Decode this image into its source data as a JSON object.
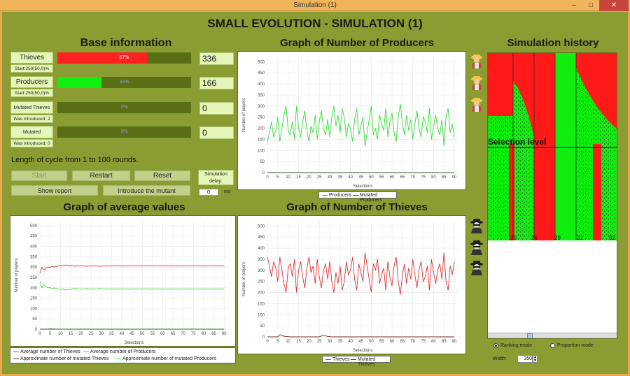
{
  "window": {
    "title": "Simulation (1)",
    "controls": [
      "–",
      "□",
      "✕"
    ]
  },
  "app_title": "SMALL EVOLUTION - SIMULATION (1)",
  "base": {
    "title": "Base information",
    "rows": [
      {
        "label": "Thieves",
        "sub": "Start:250(50,0)%",
        "percent_text": "67%",
        "fraction": 0.67,
        "color": "#ff2020",
        "value": "336"
      },
      {
        "label": "Producers",
        "sub": "Start:250(50,0)%",
        "percent_text": "33%",
        "fraction": 0.33,
        "color": "#10f010",
        "value": "166"
      },
      {
        "label": "Mutated Thieves",
        "sub": "Was introduced: 2",
        "percent_text": "0%",
        "fraction": 0,
        "color": "#ff2020",
        "value": "0"
      },
      {
        "label": "Mutated Producers",
        "sub": "Was introduced: 0",
        "percent_text": "0%",
        "fraction": 0,
        "color": "#10f010",
        "value": "0"
      }
    ],
    "cycle_text": "Length of cycle from 1 to 100 rounds.",
    "buttons": {
      "start": "Start",
      "restart": "Restart",
      "reset": "Reset",
      "show_report": "Show report",
      "introduce": "Introduce the mutant"
    },
    "delay_label": "Simulation delay:",
    "delay_value": "0",
    "delay_unit": "ms"
  },
  "history": {
    "title": "Simulation history",
    "selection_label": "Selection level",
    "labels": [
      "25",
      "26",
      "29",
      "31",
      "32"
    ],
    "mode_ranking": "Ranking mode",
    "mode_proportion": "Proportion mode",
    "width_label": "Width:",
    "width_value": "350"
  },
  "icons": {
    "producers": "farmer-icon",
    "thieves": "thief-icon"
  },
  "chart_data": [
    {
      "id": "producers",
      "type": "line",
      "title": "Graph of Number of Producers",
      "xlabel": "Selections",
      "ylabel": "Number of players",
      "xlim": [
        0,
        92
      ],
      "ylim": [
        0,
        520
      ],
      "xticks": [
        0,
        5,
        10,
        15,
        20,
        25,
        30,
        35,
        40,
        45,
        50,
        55,
        60,
        65,
        70,
        75,
        80,
        85,
        90
      ],
      "yticks": [
        0,
        50,
        100,
        150,
        200,
        250,
        300,
        350,
        400,
        450,
        500
      ],
      "series": [
        {
          "name": "Producers",
          "color": "#33dd33",
          "x_start": 0,
          "values": [
            140,
            180,
            230,
            160,
            190,
            250,
            140,
            200,
            260,
            300,
            190,
            170,
            230,
            150,
            300,
            200,
            160,
            230,
            280,
            190,
            140,
            210,
            180,
            260,
            150,
            230,
            280,
            200,
            170,
            240,
            160,
            250,
            300,
            210,
            260,
            180,
            290,
            250,
            160,
            220,
            200,
            140,
            240,
            290,
            170,
            210,
            250,
            120,
            180,
            240,
            300,
            170,
            200,
            150,
            260,
            220,
            190,
            290,
            160,
            230,
            270,
            180,
            140,
            250,
            310,
            220,
            170,
            260,
            190,
            240,
            150,
            220,
            280,
            200,
            160,
            250,
            230,
            180,
            290,
            150,
            210,
            260,
            200,
            170,
            240,
            120,
            250,
            290,
            180,
            220,
            160
          ]
        },
        {
          "name": "Mutated Producers",
          "color": "#226622",
          "x_start": 0,
          "values": [
            0,
            0,
            0,
            0,
            0,
            0,
            0,
            0,
            0,
            0,
            0,
            0,
            0,
            0,
            0,
            0,
            0,
            0,
            0,
            0,
            0,
            0,
            0,
            0,
            0,
            0,
            0,
            0,
            0,
            0,
            0,
            0,
            0,
            0,
            0,
            0,
            0,
            0,
            0,
            0,
            0,
            0,
            0,
            0,
            0,
            0,
            0,
            0,
            0,
            0,
            0,
            0,
            0,
            0,
            0,
            0,
            0,
            0,
            0,
            0,
            0,
            0,
            0,
            0,
            0,
            0,
            0,
            0,
            0,
            0,
            0,
            0,
            0,
            0,
            0,
            0,
            0,
            0,
            0,
            0,
            0,
            0,
            0,
            0,
            0,
            0,
            0,
            0,
            0,
            0,
            0
          ]
        }
      ]
    },
    {
      "id": "thieves",
      "type": "line",
      "title": "Graph of Number of Thieves",
      "xlabel": "Selections",
      "ylabel": "Number of players",
      "xlim": [
        0,
        92
      ],
      "ylim": [
        0,
        520
      ],
      "xticks": [
        0,
        5,
        10,
        15,
        20,
        25,
        30,
        35,
        40,
        45,
        50,
        55,
        60,
        65,
        70,
        75,
        80,
        85,
        90
      ],
      "yticks": [
        0,
        50,
        100,
        150,
        200,
        250,
        300,
        350,
        400,
        450,
        500
      ],
      "series": [
        {
          "name": "Thieves",
          "color": "#dd3333",
          "x_start": 0,
          "values": [
            360,
            320,
            270,
            340,
            310,
            250,
            360,
            300,
            240,
            200,
            310,
            330,
            270,
            350,
            200,
            300,
            340,
            270,
            220,
            310,
            360,
            290,
            320,
            240,
            350,
            270,
            220,
            300,
            330,
            260,
            340,
            250,
            200,
            290,
            240,
            320,
            210,
            250,
            340,
            280,
            300,
            360,
            260,
            210,
            330,
            290,
            250,
            380,
            320,
            260,
            200,
            330,
            300,
            350,
            240,
            280,
            310,
            210,
            340,
            270,
            230,
            320,
            360,
            250,
            190,
            280,
            330,
            240,
            310,
            260,
            350,
            280,
            220,
            300,
            340,
            250,
            270,
            320,
            210,
            350,
            290,
            240,
            300,
            330,
            260,
            380,
            250,
            210,
            320,
            280,
            340
          ]
        },
        {
          "name": "Mutated Thieves",
          "color": "#7a2a2a",
          "x_start": 0,
          "values": [
            0,
            0,
            0,
            0,
            0,
            0,
            10,
            6,
            3,
            2,
            1,
            0,
            0,
            0,
            0,
            0,
            0,
            0,
            0,
            0,
            0,
            0,
            0,
            0,
            0,
            0,
            4,
            7,
            5,
            2,
            1,
            0,
            0,
            0,
            0,
            0,
            0,
            0,
            0,
            0,
            0,
            0,
            0,
            0,
            0,
            0,
            0,
            0,
            0,
            0,
            0,
            0,
            0,
            0,
            0,
            0,
            0,
            0,
            0,
            0,
            0,
            0,
            0,
            0,
            0,
            0,
            0,
            0,
            0,
            0,
            0,
            0,
            0,
            0,
            0,
            0,
            0,
            0,
            0,
            0,
            0,
            0,
            0,
            0,
            0,
            0,
            0,
            0,
            0,
            0,
            0
          ]
        }
      ]
    },
    {
      "id": "averages",
      "type": "line",
      "title": "Graph of average values",
      "xlabel": "Selections",
      "ylabel": "Number of players",
      "xlim": [
        0,
        92
      ],
      "ylim": [
        0,
        520
      ],
      "xticks": [
        0,
        5,
        10,
        15,
        20,
        25,
        30,
        35,
        40,
        45,
        50,
        55,
        60,
        65,
        70,
        75,
        80,
        85,
        90
      ],
      "yticks": [
        0,
        50,
        100,
        150,
        200,
        250,
        300,
        350,
        400,
        450,
        500
      ],
      "series": [
        {
          "name": "Average number of Thieves",
          "color": "#dd3333",
          "x_start": 0,
          "values": [
            270,
            300,
            285,
            295,
            300,
            298,
            305,
            300,
            303,
            306,
            308,
            305,
            309,
            310,
            307,
            309,
            306,
            304,
            306,
            305,
            307,
            306,
            305,
            304,
            305,
            306,
            305,
            306,
            305,
            304,
            305,
            306,
            306,
            305,
            306,
            305,
            306,
            307,
            306,
            305,
            306,
            306,
            305,
            306,
            307,
            306,
            305,
            306,
            306,
            307,
            306,
            305,
            306,
            306,
            307,
            306,
            306,
            305,
            306,
            307,
            306,
            306,
            307,
            306,
            306,
            305,
            306,
            307,
            306,
            306,
            307,
            306,
            306,
            307,
            306,
            306,
            307,
            306,
            306,
            307,
            306,
            306,
            307,
            306,
            306,
            307,
            306,
            306,
            307,
            306,
            306
          ]
        },
        {
          "name": "Average number of Producers",
          "color": "#33dd33",
          "x_start": 0,
          "values": [
            230,
            200,
            215,
            205,
            200,
            202,
            195,
            200,
            197,
            194,
            192,
            195,
            191,
            190,
            193,
            191,
            194,
            196,
            194,
            195,
            193,
            194,
            195,
            196,
            195,
            194,
            195,
            194,
            195,
            196,
            195,
            194,
            194,
            195,
            194,
            195,
            194,
            193,
            194,
            195,
            194,
            194,
            195,
            194,
            193,
            194,
            195,
            194,
            194,
            193,
            194,
            195,
            194,
            194,
            193,
            194,
            194,
            195,
            194,
            193,
            194,
            194,
            193,
            194,
            194,
            195,
            194,
            193,
            194,
            194,
            193,
            194,
            194,
            193,
            194,
            194,
            193,
            194,
            194,
            193,
            194,
            194,
            193,
            194,
            194,
            193,
            194,
            194,
            193,
            194,
            194
          ]
        },
        {
          "name": "Approximate number of mutated Thieves",
          "color": "#7a2a2a",
          "x_start": 0,
          "values": [
            0,
            0,
            0,
            0,
            0,
            2,
            1,
            1,
            0,
            0,
            0,
            0,
            0,
            0,
            0,
            0,
            0,
            0,
            0,
            0,
            0,
            0,
            0,
            0,
            0,
            0,
            0,
            0,
            0,
            0,
            0,
            0,
            0,
            0,
            0,
            0,
            0,
            0,
            0,
            0,
            0,
            0,
            0,
            0,
            0,
            0,
            0,
            0,
            0,
            0,
            0,
            0,
            0,
            0,
            0,
            0,
            0,
            0,
            0,
            0,
            0,
            0,
            0,
            0,
            0,
            0,
            0,
            0,
            0,
            0,
            0,
            0,
            0,
            0,
            0,
            0,
            0,
            0,
            0,
            0,
            0,
            0,
            0,
            0,
            0,
            0,
            0,
            0,
            0,
            0,
            0
          ]
        },
        {
          "name": "Approximate number of mutated Producers",
          "color": "#226622",
          "x_start": 0,
          "values": [
            0,
            0,
            0,
            0,
            0,
            0,
            0,
            0,
            0,
            0,
            0,
            0,
            0,
            0,
            0,
            0,
            0,
            0,
            0,
            0,
            0,
            0,
            0,
            0,
            0,
            0,
            0,
            0,
            0,
            0,
            0,
            0,
            0,
            0,
            0,
            0,
            0,
            0,
            0,
            0,
            0,
            0,
            0,
            0,
            0,
            0,
            0,
            0,
            0,
            0,
            0,
            0,
            0,
            0,
            0,
            0,
            0,
            0,
            0,
            0,
            0,
            0,
            0,
            0,
            0,
            0,
            0,
            0,
            0,
            0,
            0,
            0,
            0,
            0,
            0,
            0,
            0,
            0,
            0,
            0,
            0,
            0,
            0,
            0,
            0,
            0,
            0,
            0,
            0,
            0,
            0
          ]
        }
      ]
    }
  ]
}
